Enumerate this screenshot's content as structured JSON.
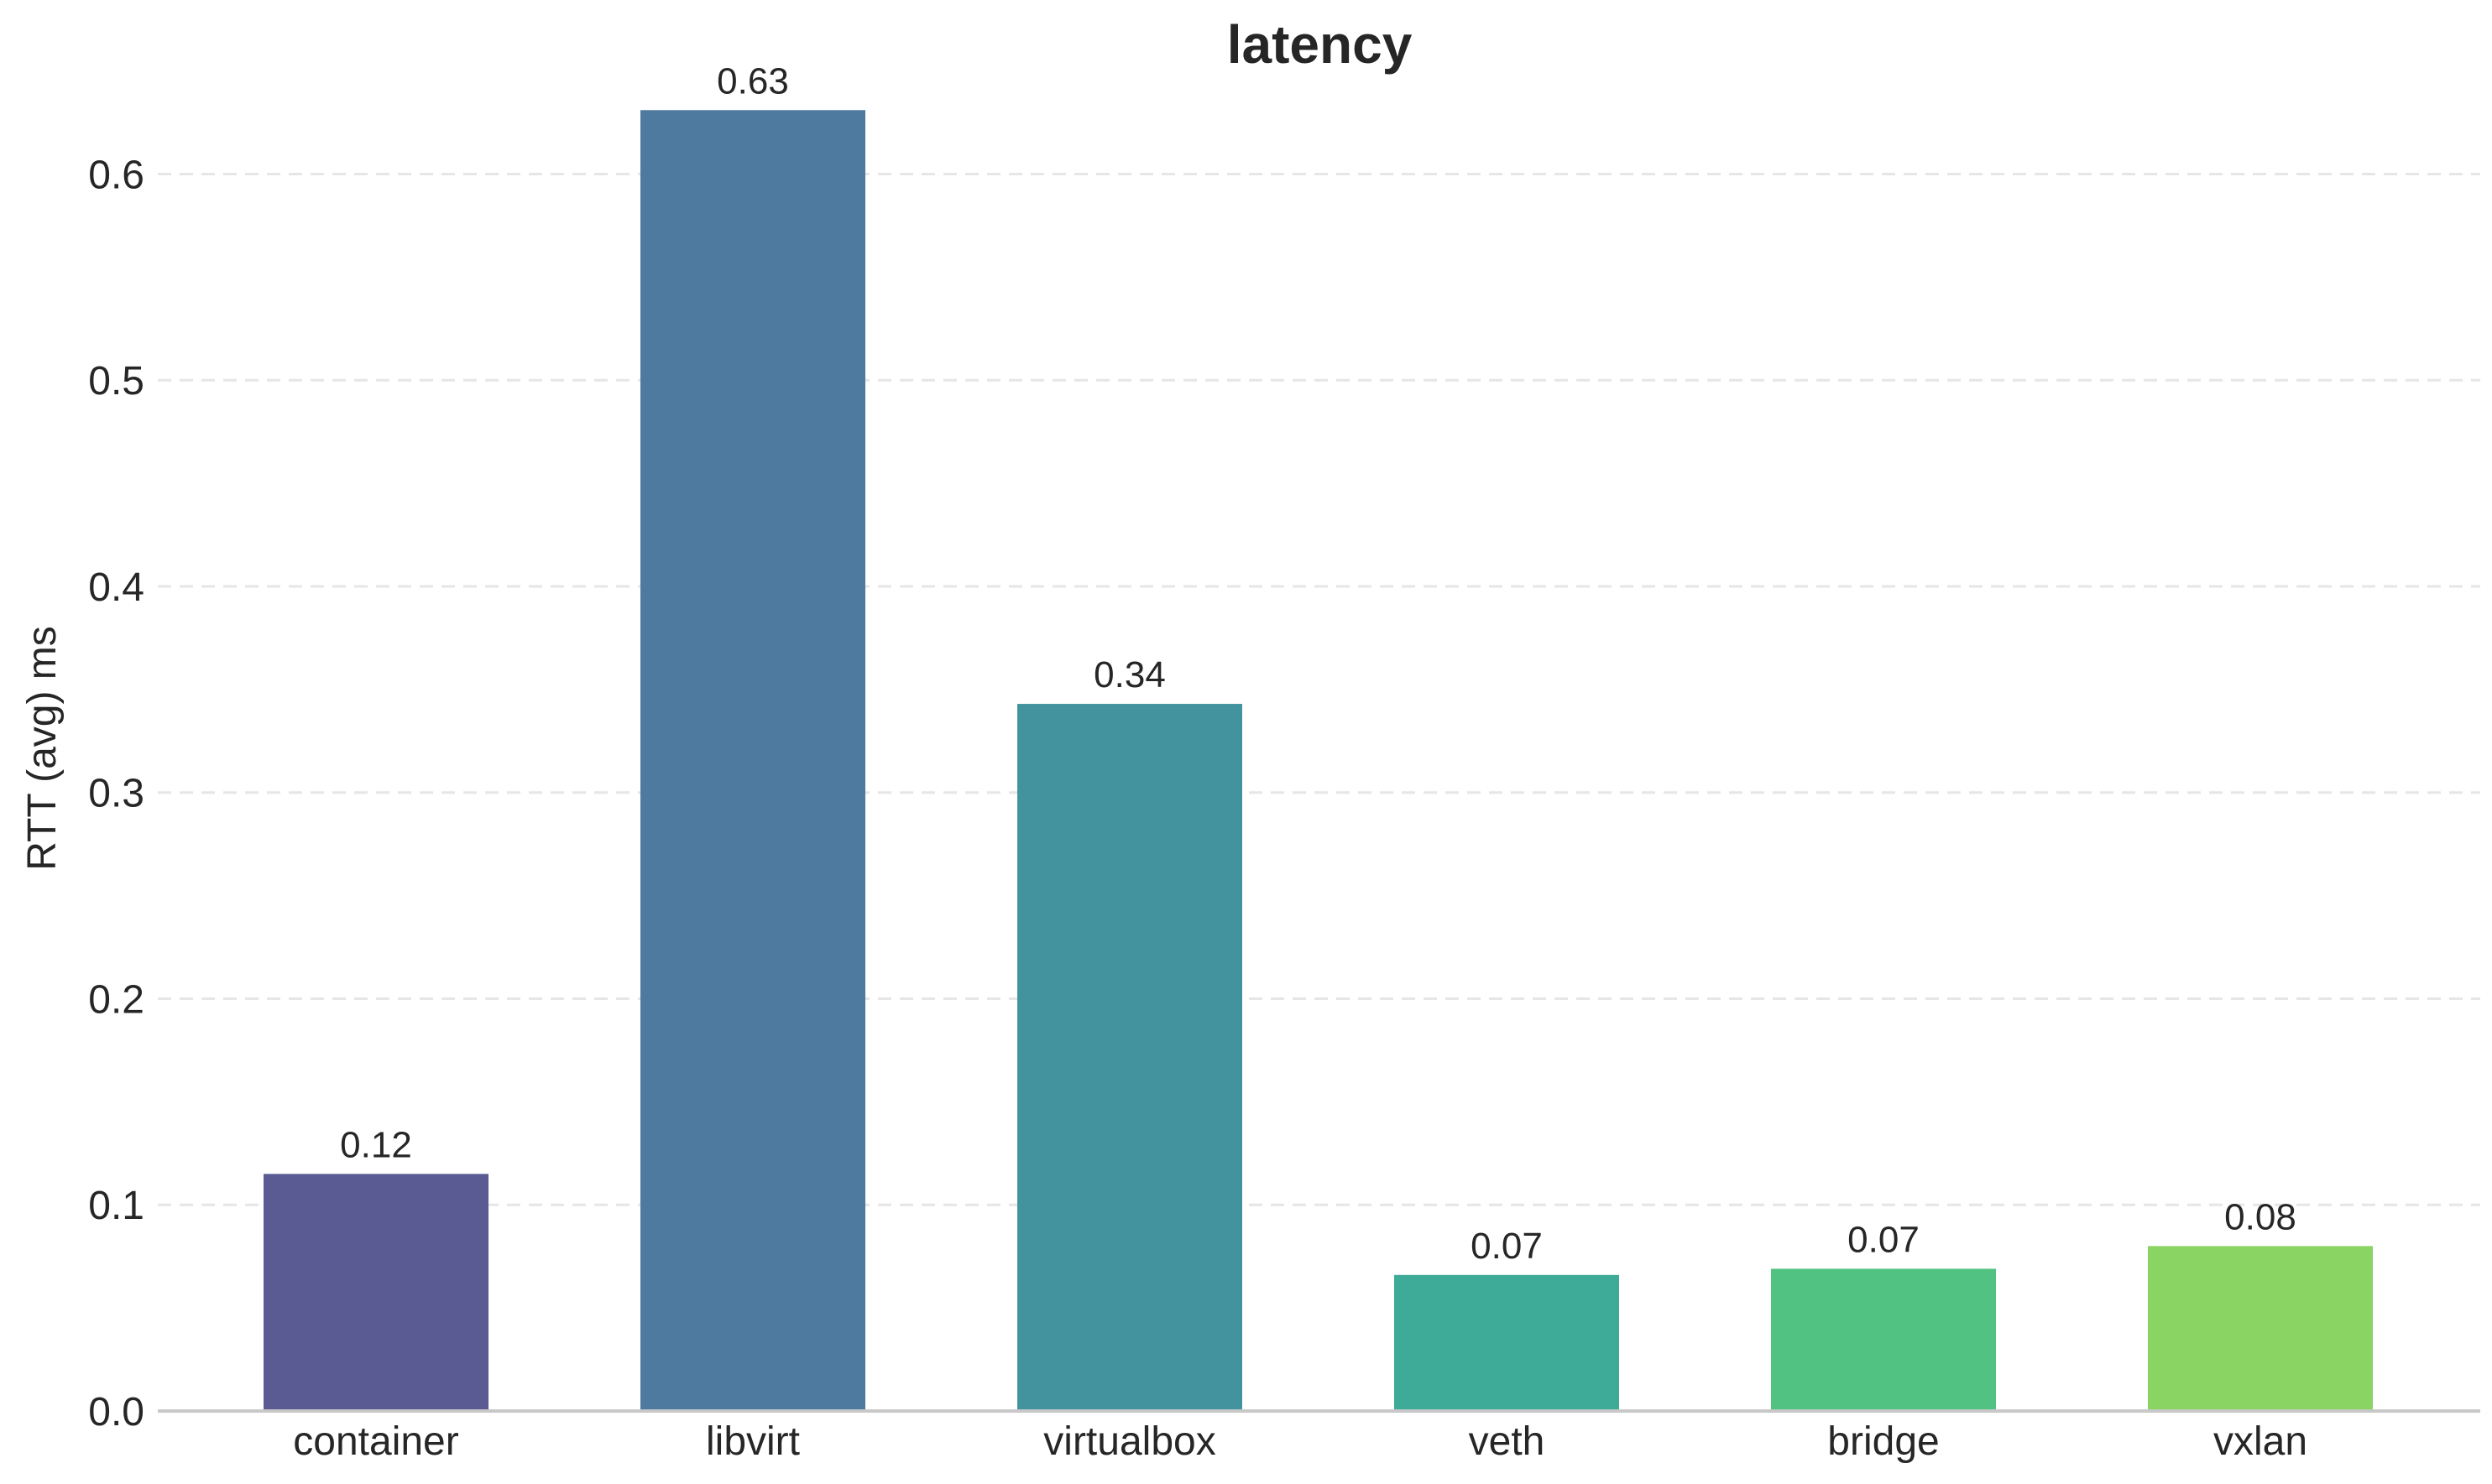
{
  "chart_data": {
    "type": "bar",
    "title": "latency",
    "xlabel": "",
    "ylabel": "RTT (avg) ms",
    "categories": [
      "container",
      "libvirt",
      "virtualbox",
      "veth",
      "bridge",
      "vxlan"
    ],
    "values": [
      0.115,
      0.631,
      0.343,
      0.066,
      0.069,
      0.08
    ],
    "data_labels": [
      "0.12",
      "0.63",
      "0.34",
      "0.07",
      "0.07",
      "0.08"
    ],
    "colors": [
      "#5b5b94",
      "#4d7a9e",
      "#43939e",
      "#3eab98",
      "#51c282",
      "#89d462"
    ],
    "ylim": [
      0,
      0.66
    ],
    "yticks": [
      0.0,
      0.1,
      0.2,
      0.3,
      0.4,
      0.5,
      0.6
    ],
    "ytick_labels": [
      "0.0",
      "0.1",
      "0.2",
      "0.3",
      "0.4",
      "0.5",
      "0.6"
    ],
    "grid": true,
    "grid_axis": "y",
    "legend": false
  }
}
